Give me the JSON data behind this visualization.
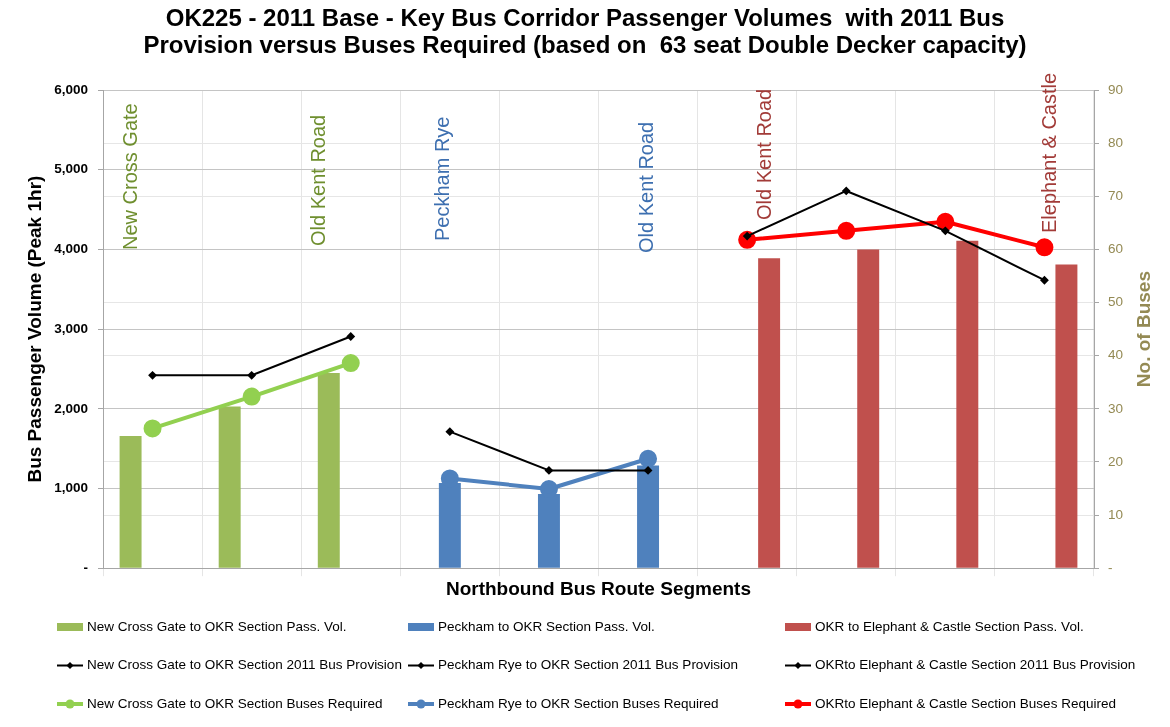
{
  "chart_data": {
    "type": "bar",
    "title": "OK225 - 2011 Base - Key Bus Corridor Passenger Volumes  with 2011 Bus Provision versus Buses Required (based on  63 seat Double Decker capacity)",
    "xlabel": "Northbound Bus Route Segments",
    "ylabel": "Bus Passenger Volume (Peak 1hr)",
    "y2label": "No. of Buses",
    "categories": [
      null,
      null,
      null,
      null,
      null,
      null,
      null,
      null,
      null,
      null
    ],
    "series": [
      {
        "name": "New Cross Gate to OKR Section Pass. Vol.",
        "color": "#9bbb59",
        "values": [
          1660,
          2030,
          2450,
          null,
          null,
          null,
          null,
          null,
          null,
          null
        ]
      },
      {
        "name": "Peckham to OKR Section Pass. Vol.",
        "color": "#4f81bd",
        "values": [
          null,
          null,
          null,
          1070,
          930,
          1290,
          null,
          null,
          null,
          null
        ]
      },
      {
        "name": "OKR to Elephant & Castle Section Pass. Vol.",
        "color": "#c0504d",
        "values": [
          null,
          null,
          null,
          null,
          null,
          null,
          3890,
          4000,
          4110,
          3810
        ]
      },
      {
        "name": "New Cross Gate to OKR Section 2011 Bus Provision",
        "type": "line",
        "axis": "y2",
        "color": "#000000",
        "marker": "diamond",
        "values": [
          36.3,
          36.3,
          43.6,
          null,
          null,
          null,
          null,
          null,
          null,
          null
        ]
      },
      {
        "name": "Peckham Rye to OKR Section 2011 Bus Provision",
        "type": "line",
        "axis": "y2",
        "color": "#000000",
        "marker": "diamond",
        "values": [
          null,
          null,
          null,
          25.7,
          18.4,
          18.4,
          null,
          null,
          null,
          null
        ]
      },
      {
        "name": "OKRto Elephant & Castle Section 2011 Bus Provision",
        "type": "line",
        "axis": "y2",
        "color": "#000000",
        "marker": "diamond",
        "values": [
          null,
          null,
          null,
          null,
          null,
          null,
          62.5,
          71.0,
          63.5,
          54.2
        ]
      },
      {
        "name": "New Cross Gate to OKR Section Buses Required",
        "type": "line",
        "axis": "y2",
        "color": "#92d050",
        "marker": "circle",
        "values": [
          26.3,
          32.3,
          38.6,
          null,
          null,
          null,
          null,
          null,
          null,
          null
        ]
      },
      {
        "name": "Peckham Rye to OKR Section Buses Required",
        "type": "line",
        "axis": "y2",
        "color": "#4f81bd",
        "marker": "circle",
        "values": [
          null,
          null,
          null,
          16.9,
          14.9,
          20.6,
          null,
          null,
          null,
          null
        ]
      },
      {
        "name": "OKRto Elephant & Castle Section Buses Required",
        "type": "line",
        "axis": "y2",
        "color": "#ff0000",
        "marker": "circle",
        "values": [
          null,
          null,
          null,
          null,
          null,
          null,
          61.8,
          63.5,
          65.2,
          60.4
        ]
      }
    ],
    "ylim": [
      0,
      6000
    ],
    "yticks": [
      {
        "value": 0,
        "label": "-"
      },
      {
        "value": 1000,
        "label": "1,000"
      },
      {
        "value": 2000,
        "label": "2,000"
      },
      {
        "value": 3000,
        "label": "3,000"
      },
      {
        "value": 4000,
        "label": "4,000"
      },
      {
        "value": 5000,
        "label": "5,000"
      },
      {
        "value": 6000,
        "label": "6,000"
      }
    ],
    "y2lim": [
      0,
      90
    ],
    "y2ticks": [
      {
        "value": 0,
        "label": "-"
      },
      10,
      20,
      30,
      40,
      50,
      60,
      70,
      80,
      90
    ],
    "grid": true,
    "legend": "bottom",
    "annotations": [
      "New Cross Gate",
      "Old Kent Road",
      "Peckham Rye",
      "Old Kent Road",
      "Old Kent Road",
      "Elephant & Castle"
    ]
  }
}
